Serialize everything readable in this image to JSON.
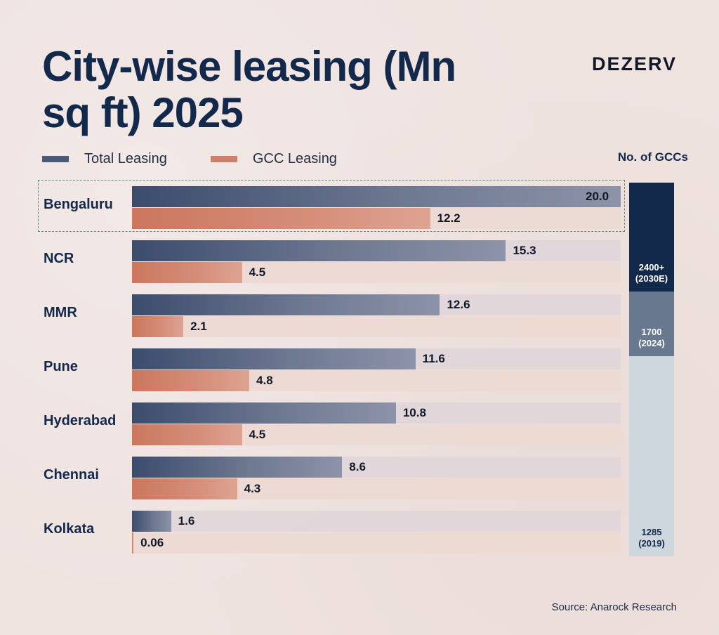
{
  "title": "City-wise leasing (Mn sq ft) 2025",
  "brand": "DEZERV",
  "legend": {
    "total": "Total Leasing",
    "gcc": "GCC Leasing"
  },
  "gcc_header": "No. of GCCs",
  "source": "Source: Anarock Research",
  "colors": {
    "total": "#3c4c6d",
    "gcc": "#cb775e",
    "gcc_2030": "#13294b",
    "gcc_2024": "#68788f",
    "gcc_2019": "#cfd7de",
    "highlight_border": "#5d8a78"
  },
  "chart_data": [
    {
      "type": "bar",
      "orientation": "horizontal",
      "title": "City-wise leasing (Mn sq ft) 2025",
      "categories": [
        "Bengaluru",
        "NCR",
        "MMR",
        "Pune",
        "Hyderabad",
        "Chennai",
        "Kolkata"
      ],
      "series": [
        {
          "name": "Total Leasing",
          "values": [
            20.0,
            15.3,
            12.6,
            11.6,
            10.8,
            8.6,
            1.6
          ],
          "labels": [
            "20.0",
            "15.3",
            "12.6",
            "11.6",
            "10.8",
            "8.6",
            "1.6"
          ]
        },
        {
          "name": "GCC Leasing",
          "values": [
            12.2,
            4.5,
            2.1,
            4.8,
            4.5,
            4.3,
            0.06
          ],
          "labels": [
            "12.2",
            "4.5",
            "2.1",
            "4.8",
            "4.5",
            "4.3",
            "0.06"
          ]
        }
      ],
      "xlim": [
        0,
        20
      ],
      "highlighted_category": "Bengaluru",
      "legend": "top-left"
    },
    {
      "type": "bar",
      "orientation": "vertical-stacked",
      "title": "No. of GCCs",
      "segments": [
        {
          "label": "2400+\n(2030E)",
          "value": 2400
        },
        {
          "label": "1700\n(2024)",
          "value": 1700
        },
        {
          "label": "1285\n(2019)",
          "value": 1285
        }
      ]
    }
  ]
}
